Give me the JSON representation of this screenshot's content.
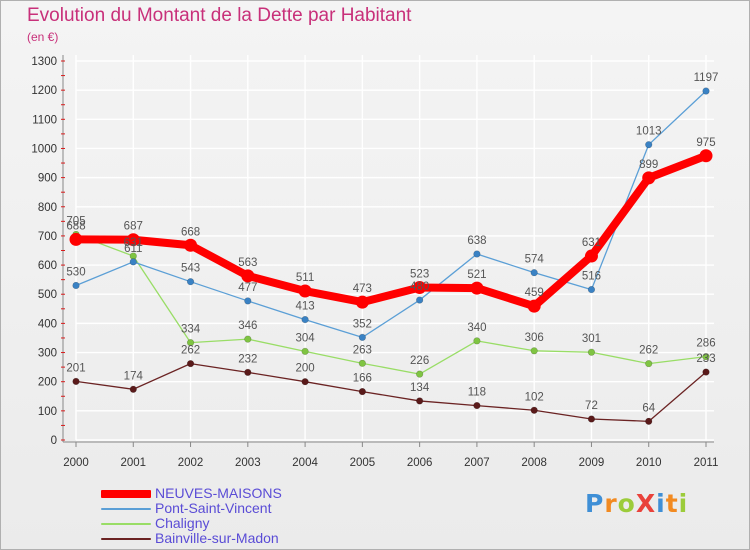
{
  "header": {
    "title": "Evolution du Montant de la Dette par Habitant",
    "unit": "(en €)"
  },
  "logo": {
    "text": "ProXiti",
    "colors": [
      "#3f8fd6",
      "#f28a21",
      "#9ccc3a",
      "#e9423b",
      "#3f8fd6",
      "#f28a21",
      "#9ccc3a"
    ]
  },
  "colors": {
    "title": "#c8307a",
    "legend_text": "#5a4cd6",
    "axis_text": "#333333",
    "grid": "#ffffff",
    "axis_ticks": "#d81b1b"
  },
  "chart_data": {
    "type": "line",
    "title": "Evolution du Montant de la Dette par Habitant",
    "subtitle": "(en €)",
    "xlabel": "",
    "ylabel": "",
    "categories": [
      "2000",
      "2001",
      "2002",
      "2003",
      "2004",
      "2005",
      "2006",
      "2007",
      "2008",
      "2009",
      "2010",
      "2011"
    ],
    "ylim": [
      0,
      1300
    ],
    "yticks": [
      0,
      100,
      200,
      300,
      400,
      500,
      600,
      700,
      800,
      900,
      1000,
      1100,
      1200,
      1300
    ],
    "grid": true,
    "legend_position": "bottom-left",
    "series": [
      {
        "name": "NEUVES-MAISONS",
        "color": "#ff0000",
        "width": 8,
        "values": [
          688,
          687,
          668,
          563,
          511,
          473,
          523,
          521,
          459,
          631,
          899,
          975
        ]
      },
      {
        "name": "Pont-Saint-Vincent",
        "color": "#5b9fd6",
        "width": 1.3,
        "values": [
          530,
          611,
          543,
          477,
          413,
          352,
          480,
          638,
          574,
          516,
          1013,
          1197
        ]
      },
      {
        "name": "Chaligny",
        "color": "#99dd66",
        "width": 1.3,
        "values": [
          705,
          631,
          334,
          346,
          304,
          263,
          226,
          340,
          306,
          301,
          262,
          286
        ]
      },
      {
        "name": "Bainville-sur-Madon",
        "color": "#6b2323",
        "width": 1.3,
        "values": [
          201,
          174,
          262,
          232,
          200,
          166,
          134,
          118,
          102,
          72,
          64,
          233
        ]
      }
    ],
    "data_labels": [
      {
        "series": 0,
        "text": [
          "688",
          "687",
          "668",
          "563",
          "511",
          "473",
          "523",
          "521",
          "459",
          "631",
          "899",
          "975"
        ]
      },
      {
        "series": 1,
        "text": [
          "530",
          "611",
          "543",
          "477",
          "413",
          "352",
          "480",
          "638",
          "574",
          "516",
          "1013",
          "1197"
        ]
      },
      {
        "series": 2,
        "text": [
          "705",
          "631",
          "334",
          "346",
          "304",
          "263",
          "226",
          "340",
          "306",
          "301",
          "262",
          "286"
        ]
      },
      {
        "series": 3,
        "text": [
          "201",
          "174",
          "262",
          "232",
          "200",
          "166",
          "134",
          "118",
          "102",
          "72",
          "64",
          "233"
        ]
      }
    ]
  }
}
